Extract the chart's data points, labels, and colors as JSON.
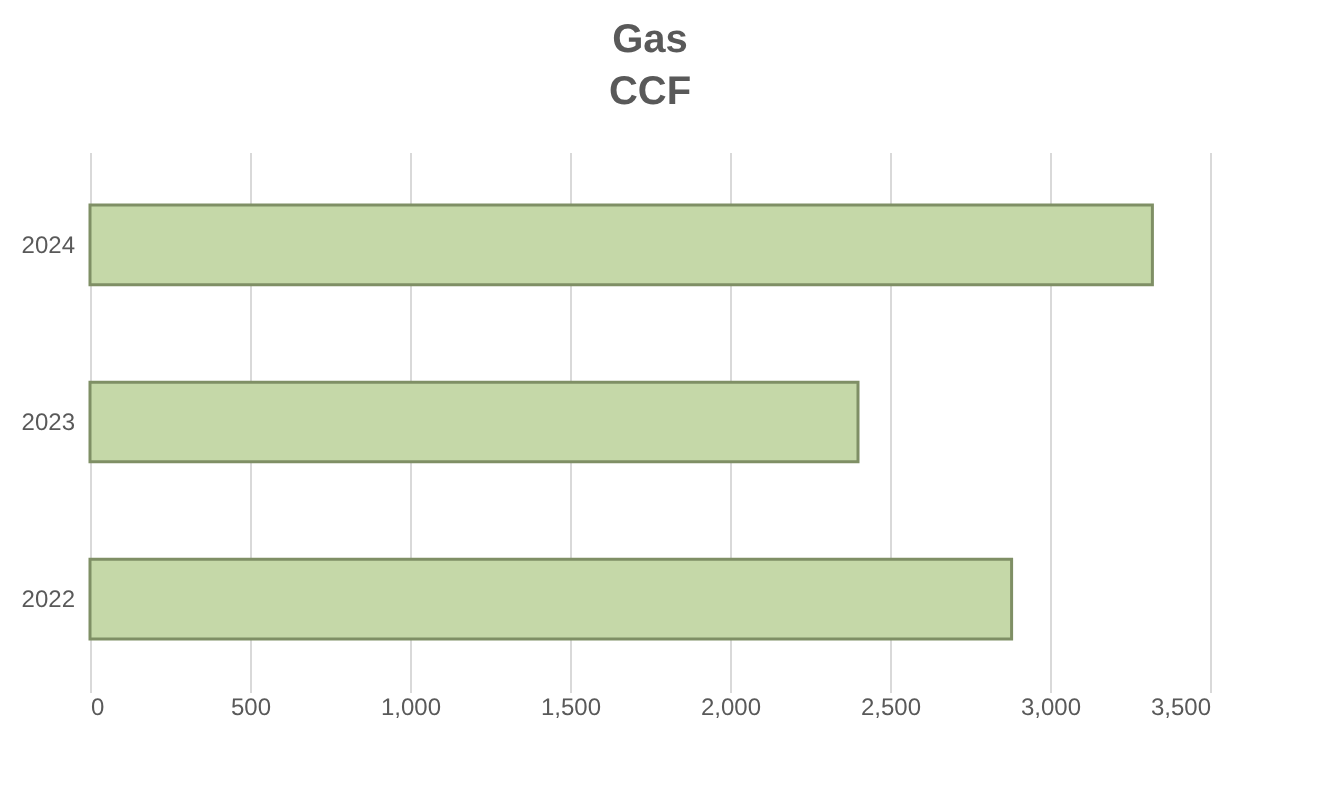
{
  "chart_data": {
    "type": "bar",
    "title": "Gas",
    "subtitle": "CCF",
    "orientation": "horizontal",
    "categories": [
      "2024",
      "2023",
      "2022"
    ],
    "values": [
      3320,
      2400,
      2880
    ],
    "color": "#c5d8a8",
    "xlim": [
      0,
      3500
    ],
    "xticks": [
      0,
      {
        "value": 500,
        "label": "500"
      },
      {
        "value": 1000,
        "label": "1,000"
      },
      {
        "value": 1500,
        "label": "1,500"
      },
      {
        "value": 2000,
        "label": "2,000"
      },
      {
        "value": 2500,
        "label": "2,500"
      },
      {
        "value": 3000,
        "label": "3,000"
      },
      {
        "value": 3500,
        "label": "3,500"
      }
    ],
    "grid": "x"
  }
}
